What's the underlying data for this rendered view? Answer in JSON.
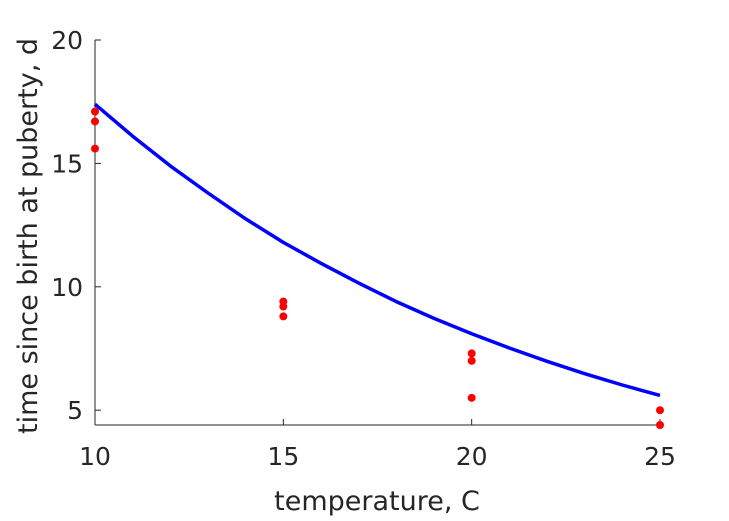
{
  "chart_data": {
    "type": "scatter",
    "title": "",
    "xlabel": "temperature, C",
    "ylabel": "time since birth at puberty, d",
    "xlim": [
      10,
      25
    ],
    "ylim": [
      4.4,
      20
    ],
    "xticks": [
      10,
      15,
      20,
      25
    ],
    "yticks": [
      5,
      10,
      15,
      20
    ],
    "grid": false,
    "series": [
      {
        "kind": "scatter",
        "color": "#ff0000",
        "points": [
          {
            "x": 10,
            "y": 17.1
          },
          {
            "x": 10,
            "y": 16.7
          },
          {
            "x": 10,
            "y": 15.6
          },
          {
            "x": 15,
            "y": 9.4
          },
          {
            "x": 15,
            "y": 9.2
          },
          {
            "x": 15,
            "y": 8.8
          },
          {
            "x": 20,
            "y": 7.3
          },
          {
            "x": 20,
            "y": 7.0
          },
          {
            "x": 20,
            "y": 5.5
          },
          {
            "x": 25,
            "y": 5.0
          },
          {
            "x": 25,
            "y": 4.4
          }
        ]
      },
      {
        "kind": "line",
        "color": "#0000ff",
        "x": [
          10,
          11,
          12,
          13,
          14,
          15,
          16,
          17,
          18,
          19,
          20,
          21,
          22,
          23,
          24,
          25
        ],
        "y": [
          17.4,
          16.1,
          14.9,
          13.8,
          12.75,
          11.8,
          10.95,
          10.15,
          9.4,
          8.72,
          8.1,
          7.52,
          6.98,
          6.48,
          6.02,
          5.6
        ]
      }
    ]
  }
}
